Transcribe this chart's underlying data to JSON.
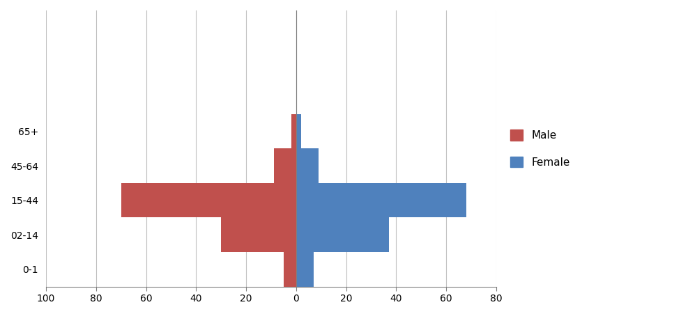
{
  "age_groups": [
    "0-1",
    "02-14",
    "15-44",
    "45-64",
    "65+"
  ],
  "male_values": [
    5,
    30,
    70,
    9,
    2
  ],
  "female_values": [
    7,
    37,
    68,
    9,
    2
  ],
  "male_color": "#C0504D",
  "female_color": "#4F81BD",
  "xlim": [
    -100,
    80
  ],
  "xticks": [
    -100,
    -80,
    -60,
    -40,
    -20,
    0,
    20,
    40,
    60,
    80
  ],
  "xticklabels": [
    "100",
    "80",
    "60",
    "40",
    "20",
    "0",
    "20",
    "40",
    "60",
    "80"
  ],
  "grid_color": "#c0c0c0",
  "background_color": "#ffffff",
  "legend_male": "Male",
  "legend_female": "Female",
  "bar_height": 1.0,
  "ylim": [
    -0.5,
    7.5
  ]
}
